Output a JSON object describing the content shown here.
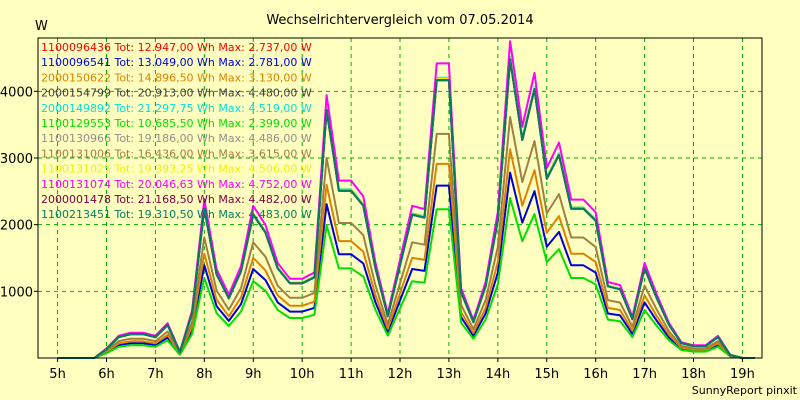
{
  "chart_data": {
    "type": "line",
    "title": "Wechselrichtervergleich vom 07.05.2014",
    "ylabel": "W",
    "xlabel": "",
    "footer": "SunnyReport pinxit",
    "xlim": [
      4.6,
      19.4
    ],
    "ylim": [
      0,
      4800
    ],
    "grid": true,
    "legend_position": "top-left",
    "x_ticks": [
      5,
      6,
      7,
      8,
      9,
      10,
      11,
      12,
      13,
      14,
      15,
      16,
      17,
      18,
      19
    ],
    "x_tick_labels": [
      "5h",
      "6h",
      "7h",
      "8h",
      "9h",
      "10h",
      "11h",
      "12h",
      "13h",
      "14h",
      "15h",
      "16h",
      "17h",
      "18h",
      "19h"
    ],
    "y_ticks": [
      1000,
      2000,
      3000,
      4000
    ],
    "y_tick_labels": [
      "1000",
      "2000",
      "3000",
      "4000"
    ],
    "x": [
      5.0,
      5.25,
      5.5,
      5.75,
      6.0,
      6.25,
      6.5,
      6.75,
      7.0,
      7.25,
      7.5,
      7.75,
      8.0,
      8.25,
      8.5,
      8.75,
      9.0,
      9.25,
      9.5,
      9.75,
      10.0,
      10.25,
      10.5,
      10.75,
      11.0,
      11.25,
      11.5,
      11.75,
      12.0,
      12.25,
      12.5,
      12.75,
      13.0,
      13.25,
      13.5,
      13.75,
      14.0,
      14.25,
      14.5,
      14.75,
      15.0,
      15.25,
      15.5,
      15.75,
      16.0,
      16.25,
      16.5,
      16.75,
      17.0,
      17.25,
      17.5,
      17.75,
      18.0,
      18.25,
      18.5,
      18.75,
      19.0,
      19.25
    ],
    "base": [
      0,
      0,
      0,
      0,
      0.03,
      0.07,
      0.08,
      0.08,
      0.07,
      0.11,
      0.02,
      0.15,
      0.5,
      0.28,
      0.2,
      0.29,
      0.48,
      0.42,
      0.3,
      0.25,
      0.25,
      0.27,
      0.83,
      0.56,
      0.56,
      0.51,
      0.3,
      0.14,
      0.31,
      0.48,
      0.47,
      0.93,
      0.93,
      0.22,
      0.12,
      0.24,
      0.46,
      1.0,
      0.73,
      0.9,
      0.6,
      0.68,
      0.5,
      0.5,
      0.46,
      0.24,
      0.23,
      0.13,
      0.3,
      0.2,
      0.11,
      0.05,
      0.04,
      0.04,
      0.07,
      0.01,
      0,
      0
    ],
    "series": [
      {
        "name": "1100096436",
        "legend": "1100096436 Tot: 12.947,00 Wh Max: 2.737,00 W",
        "color": "#ff0000",
        "max": 2737,
        "draw": false
      },
      {
        "name": "1100096541",
        "legend": "1100096541 Tot: 13.049,00 Wh Max: 2.781,00 W",
        "color": "#0000dd",
        "max": 2781,
        "draw": true
      },
      {
        "name": "2000150622",
        "legend": "2000150622 Tot: 14.896,50 Wh Max: 3.130,00 W",
        "color": "#e08000",
        "max": 3130,
        "draw": true
      },
      {
        "name": "2000154799",
        "legend": "2000154799 Tot: 20.913,00 Wh Max: 4.480,00 W",
        "color": "#404040",
        "max": 4480,
        "draw": true
      },
      {
        "name": "2000149892",
        "legend": "2000149892 Tot: 21.297,75 Wh Max: 4.519,00 W",
        "color": "#00e0e0",
        "max": 4519,
        "draw": true
      },
      {
        "name": "1100129553",
        "legend": "1100129553 Tot: 10.685,50 Wh Max: 2.399,00 W",
        "color": "#00e000",
        "max": 2399,
        "draw": true
      },
      {
        "name": "1100130966",
        "legend": "1100130966 Tot: 19.186,00 Wh Max: 4.486,00 W",
        "color": "#909090",
        "max": 4486,
        "draw": true
      },
      {
        "name": "1100131006",
        "legend": "1100131006 Tot: 16.436,00 Wh Max: 3.615,00 W",
        "color": "#a08040",
        "max": 3615,
        "draw": true
      },
      {
        "name": "1100131025",
        "legend": "1100131025 Tot: 19.393,25 Wh Max: 4.506,00 W",
        "color": "#f0f000",
        "max": 4506,
        "draw": true
      },
      {
        "name": "1100131074",
        "legend": "1100131074 Tot: 20.046,63 Wh Max: 4.752,00 W",
        "color": "#ff00ff",
        "max": 4752,
        "draw": true
      },
      {
        "name": "2000001478",
        "legend": "2000001478 Tot: 21.168,50 Wh Max: 4.482,00 W",
        "color": "#800040",
        "max": 4482,
        "draw": true
      },
      {
        "name": "1100213451",
        "legend": "1100213451 Tot: 19.310,50 Wh Max: 4.483,00 W",
        "color": "#008060",
        "max": 4483,
        "draw": true
      }
    ]
  }
}
